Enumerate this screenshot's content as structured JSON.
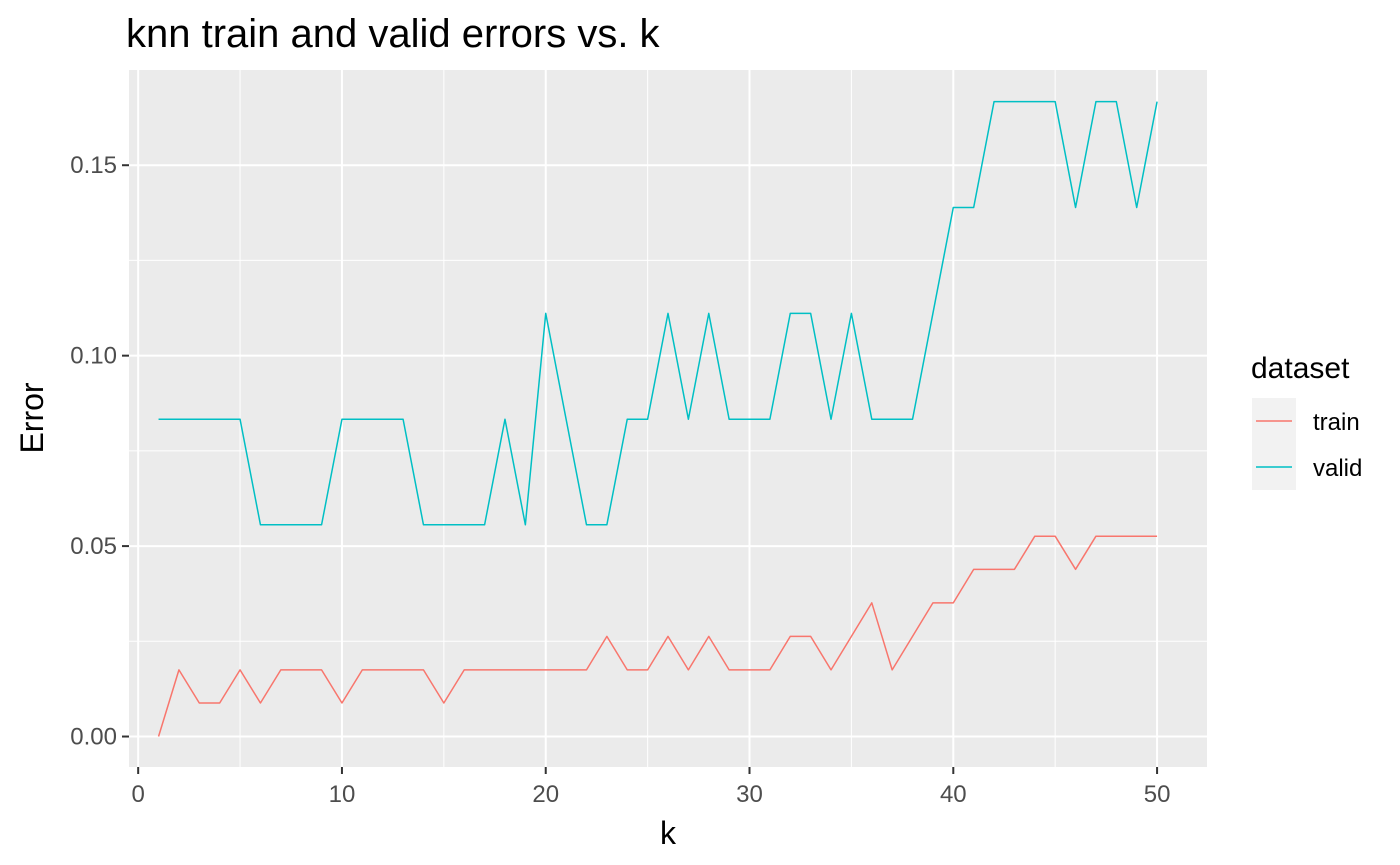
{
  "chart_data": {
    "type": "line",
    "title": "knn train and valid errors vs. k",
    "xlabel": "k",
    "ylabel": "Error",
    "xlim": [
      -0.45,
      52.45
    ],
    "ylim": [
      -0.008,
      0.175
    ],
    "xticks": [
      0,
      10,
      20,
      30,
      40,
      50
    ],
    "yticks": [
      0.0,
      0.05,
      0.1,
      0.15
    ],
    "xtick_labels": [
      "0",
      "10",
      "20",
      "30",
      "40",
      "50"
    ],
    "ytick_labels": [
      "0.00",
      "0.05",
      "0.10",
      "0.15"
    ],
    "grid": true,
    "legend": {
      "title": "dataset",
      "position": "right"
    },
    "x": [
      1,
      2,
      3,
      4,
      5,
      6,
      7,
      8,
      9,
      10,
      11,
      12,
      13,
      14,
      15,
      16,
      17,
      18,
      19,
      20,
      21,
      22,
      23,
      24,
      25,
      26,
      27,
      28,
      29,
      30,
      31,
      32,
      33,
      34,
      35,
      36,
      37,
      38,
      39,
      40,
      41,
      42,
      43,
      44,
      45,
      46,
      47,
      48,
      49,
      50
    ],
    "series": [
      {
        "name": "train",
        "color": "#F8766D",
        "values": [
          0.0,
          0.0175,
          0.0088,
          0.0088,
          0.0175,
          0.0088,
          0.0175,
          0.0175,
          0.0175,
          0.0088,
          0.0175,
          0.0175,
          0.0175,
          0.0175,
          0.0088,
          0.0175,
          0.0175,
          0.0175,
          0.0175,
          0.0175,
          0.0175,
          0.0175,
          0.0263,
          0.0175,
          0.0175,
          0.0263,
          0.0175,
          0.0263,
          0.0175,
          0.0175,
          0.0175,
          0.0263,
          0.0263,
          0.0175,
          0.0263,
          0.0351,
          0.0175,
          0.0263,
          0.0351,
          0.0351,
          0.0439,
          0.0439,
          0.0439,
          0.0526,
          0.0526,
          0.0439,
          0.0526,
          0.0526,
          0.0526,
          0.0526
        ]
      },
      {
        "name": "valid",
        "color": "#00BFC4",
        "values": [
          0.0833,
          0.0833,
          0.0833,
          0.0833,
          0.0833,
          0.0556,
          0.0556,
          0.0556,
          0.0556,
          0.0833,
          0.0833,
          0.0833,
          0.0833,
          0.0556,
          0.0556,
          0.0556,
          0.0556,
          0.0833,
          0.0556,
          0.1111,
          0.0833,
          0.0556,
          0.0556,
          0.0833,
          0.0833,
          0.1111,
          0.0833,
          0.1111,
          0.0833,
          0.0833,
          0.0833,
          0.1111,
          0.1111,
          0.0833,
          0.1111,
          0.0833,
          0.0833,
          0.0833,
          0.1111,
          0.1389,
          0.1389,
          0.1667,
          0.1667,
          0.1667,
          0.1667,
          0.1389,
          0.1667,
          0.1667,
          0.1389,
          0.1667
        ]
      }
    ]
  }
}
